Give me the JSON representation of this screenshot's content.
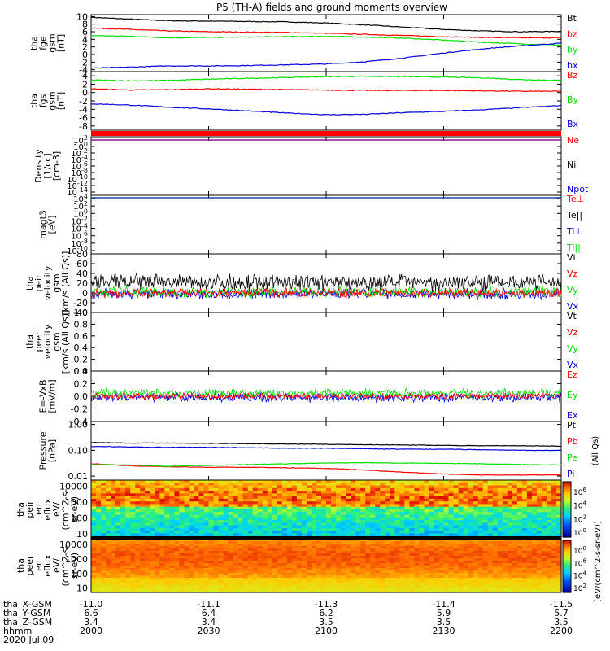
{
  "title": "P5 (TH-A) fields and ground moments overview",
  "chart_data": [
    {
      "type": "line",
      "panel": "fge",
      "ylabel": [
        "tha",
        "fge",
        "gsm",
        "[nT]"
      ],
      "ylim": [
        -4.5,
        10.5
      ],
      "yticks": [
        -4,
        -2,
        0,
        2,
        4,
        6,
        8,
        10
      ],
      "x": [
        2000,
        2010,
        2020,
        2030,
        2040,
        2050,
        2100,
        2110,
        2120,
        2130,
        2140,
        2150,
        2200
      ],
      "series": [
        {
          "name": "Bt",
          "color": "#000000",
          "values": [
            9.8,
            9.3,
            8.9,
            8.8,
            8.7,
            8.6,
            8.3,
            7.8,
            7.2,
            6.6,
            6.2,
            6.0,
            6.1
          ]
        },
        {
          "name": "bz",
          "color": "#ff0000",
          "values": [
            7.0,
            6.6,
            6.2,
            6.0,
            5.9,
            5.8,
            5.6,
            5.3,
            5.0,
            4.7,
            4.5,
            4.4,
            4.4
          ]
        },
        {
          "name": "by",
          "color": "#00dd00",
          "values": [
            5.0,
            4.8,
            4.4,
            4.5,
            4.6,
            4.7,
            4.8,
            4.6,
            4.3,
            3.8,
            3.2,
            2.8,
            2.5
          ]
        },
        {
          "name": "bx",
          "color": "#0000dd",
          "values": [
            -3.6,
            -3.3,
            -3.0,
            -3.0,
            -2.9,
            -2.7,
            -2.5,
            -1.9,
            -0.9,
            0.4,
            1.5,
            2.3,
            3.0
          ]
        }
      ]
    },
    {
      "type": "line",
      "panel": "fgs",
      "ylabel": [
        "tha",
        "fgs",
        "gsm",
        "[nT]"
      ],
      "ylim": [
        -9,
        5
      ],
      "yticks": [
        -8,
        -6,
        -4,
        -2,
        0,
        2,
        4
      ],
      "x": [
        2000,
        2010,
        2020,
        2030,
        2040,
        2050,
        2100,
        2110,
        2120,
        2130,
        2140,
        2150,
        2200
      ],
      "series": [
        {
          "name": "Bz",
          "color": "#ff0000",
          "values": [
            0.9,
            0.6,
            0.7,
            0.9,
            0.8,
            0.7,
            0.6,
            0.5,
            0.5,
            0.5,
            0.4,
            0.3,
            0.3
          ]
        },
        {
          "name": "By",
          "color": "#00dd00",
          "values": [
            3.0,
            2.8,
            2.9,
            3.2,
            3.4,
            3.6,
            3.8,
            3.9,
            3.8,
            3.7,
            3.5,
            3.1,
            2.9
          ]
        },
        {
          "name": "Bx",
          "color": "#0000dd",
          "values": [
            -2.7,
            -3.0,
            -3.5,
            -3.9,
            -4.4,
            -4.9,
            -5.3,
            -5.2,
            -4.8,
            -4.5,
            -4.1,
            -3.6,
            -3.1
          ]
        }
      ]
    },
    {
      "type": "line",
      "panel": "density",
      "ylabel": [
        "Density",
        "[1/cc]",
        "[cm-3]"
      ],
      "ylim": [
        -14,
        2
      ],
      "ylog": true,
      "yticks": [
        "10^2",
        "10^0",
        "10^-2",
        "10^-4",
        "10^-6",
        "10^-8",
        "10^-10",
        "10^-12",
        "10^-14"
      ],
      "series": [
        {
          "name": "Ne",
          "color": "#ff0000"
        },
        {
          "name": "Ni",
          "color": "#000000"
        },
        {
          "name": "Npot",
          "color": "#0000dd"
        }
      ]
    },
    {
      "type": "line",
      "panel": "temperature",
      "ylabel": [
        "magt3",
        "[eV]"
      ],
      "ylim": [
        -10,
        5
      ],
      "ylog": true,
      "yticks": [
        "10^4",
        "10^2",
        "10^0",
        "10^-2",
        "10^-4",
        "10^-6",
        "10^-8",
        "10^-10"
      ],
      "series": [
        {
          "name": "Te⊥",
          "color": "#ff0000"
        },
        {
          "name": "Te||",
          "color": "#000000"
        },
        {
          "name": "Ti⊥",
          "color": "#0000dd"
        },
        {
          "name": "Ti||",
          "color": "#00dd00"
        }
      ]
    },
    {
      "type": "line",
      "panel": "peir-velocity",
      "ylabel": [
        "tha",
        "peir",
        "velocity",
        "gsm",
        "[km/s (All Qs)]"
      ],
      "ylim": [
        -40,
        80
      ],
      "yticks": [
        -40,
        -20,
        0,
        20,
        40,
        60,
        80
      ],
      "series": [
        {
          "name": "Vt",
          "color": "#000000",
          "mean": 22,
          "noise": 14
        },
        {
          "name": "Vz",
          "color": "#ff0000",
          "mean": 0,
          "noise": 8
        },
        {
          "name": "Vy",
          "color": "#00dd00",
          "mean": 2,
          "noise": 9
        },
        {
          "name": "Vx",
          "color": "#0000dd",
          "mean": -2,
          "noise": 9
        }
      ]
    },
    {
      "type": "line",
      "panel": "peer-velocity",
      "ylabel": [
        "tha",
        "peer",
        "velocity",
        "gsm",
        "[km/s (All Qs)]"
      ],
      "ylim": [
        0,
        1
      ],
      "yticks": [
        "0.0",
        "0.2",
        "0.4",
        "0.6",
        "0.8",
        "1.0"
      ],
      "series": [
        {
          "name": "Vt",
          "color": "#000000"
        },
        {
          "name": "Vz",
          "color": "#ff0000"
        },
        {
          "name": "Vy",
          "color": "#00dd00"
        },
        {
          "name": "Vx",
          "color": "#0000dd"
        }
      ]
    },
    {
      "type": "line",
      "panel": "efield",
      "ylabel": [
        "E=-VxB",
        "[mV/m]"
      ],
      "ylim": [
        -0.4,
        0.4
      ],
      "yticks": [
        "-0.4",
        "-0.2",
        "0.0",
        "0.2",
        "0.4"
      ],
      "series": [
        {
          "name": "Ez",
          "color": "#ff0000",
          "mean": 0.0,
          "noise": 0.04
        },
        {
          "name": "Ey",
          "color": "#00dd00",
          "mean": 0.05,
          "noise": 0.06
        },
        {
          "name": "Ex",
          "color": "#0000dd",
          "mean": -0.02,
          "noise": 0.06
        }
      ]
    },
    {
      "type": "line",
      "panel": "pressure",
      "ylabel": [
        "Pressure",
        "[nPa]"
      ],
      "ylim": [
        0.007,
        1.3
      ],
      "ylog": true,
      "yticks": [
        "0.01",
        "0.10",
        "1.00"
      ],
      "x": [
        2000,
        2010,
        2020,
        2030,
        2040,
        2050,
        2100,
        2110,
        2120,
        2130,
        2140,
        2150,
        2200
      ],
      "series": [
        {
          "name": "Pt",
          "color": "#000000",
          "values": [
            0.2,
            0.19,
            0.19,
            0.185,
            0.18,
            0.175,
            0.17,
            0.165,
            0.16,
            0.155,
            0.15,
            0.15,
            0.145
          ]
        },
        {
          "name": "Pb",
          "color": "#ff0000",
          "values": [
            0.03,
            0.025,
            0.023,
            0.022,
            0.022,
            0.021,
            0.02,
            0.017,
            0.014,
            0.012,
            0.011,
            0.011,
            0.011
          ]
        },
        {
          "name": "Pe",
          "color": "#00dd00",
          "values": [
            0.028,
            0.027,
            0.024,
            0.026,
            0.028,
            0.03,
            0.032,
            0.033,
            0.032,
            0.031,
            0.03,
            0.028,
            0.027
          ]
        },
        {
          "name": "Pi",
          "color": "#0000dd",
          "values": [
            0.14,
            0.135,
            0.13,
            0.13,
            0.125,
            0.12,
            0.12,
            0.115,
            0.11,
            0.11,
            0.105,
            0.1,
            0.1
          ]
        }
      ],
      "side_label": "(All Qs)"
    },
    {
      "type": "heatmap",
      "panel": "peir-eflux",
      "ylabel": [
        "tha",
        "peir",
        "en",
        "eflux",
        "eV/",
        "(cm^2-s-",
        "sr-eV)"
      ],
      "ylim": [
        5,
        25000
      ],
      "ylog": true,
      "yticks": [
        "10",
        "100",
        "1000",
        "10000"
      ]
    },
    {
      "type": "heatmap",
      "panel": "peer-eflux",
      "ylabel": [
        "tha",
        "peer",
        "en",
        "eflux",
        "eV/",
        "(cm^2-s-",
        "sr-eV)"
      ],
      "ylim": [
        5,
        25000
      ],
      "ylog": true,
      "yticks": [
        "10",
        "100",
        "1000",
        "10000"
      ]
    }
  ],
  "colorbar": {
    "label": "[eV/(cm^2-s-sr-eV)]",
    "ticks_upper": [
      "10^6",
      "10^4",
      "10^2",
      "10^0"
    ],
    "ticks_lower": [
      "10^8",
      "10^6",
      "10^4",
      "10^2"
    ]
  },
  "x_axis": {
    "rows": [
      {
        "label": "tha_X-GSM",
        "values": [
          "-11.0",
          "-11.1",
          "-11.3",
          "-11.4",
          "-11.5"
        ]
      },
      {
        "label": "tha_Y-GSM",
        "values": [
          "6.6",
          "6.4",
          "6.2",
          "5.9",
          "5.7"
        ]
      },
      {
        "label": "tha_Z-GSM",
        "values": [
          "3.4",
          "3.4",
          "3.5",
          "3.5",
          "3.5"
        ]
      },
      {
        "label": "hhmm",
        "values": [
          "2000",
          "2030",
          "2100",
          "2130",
          "2200"
        ]
      }
    ],
    "date": "2020 Jul 09"
  }
}
